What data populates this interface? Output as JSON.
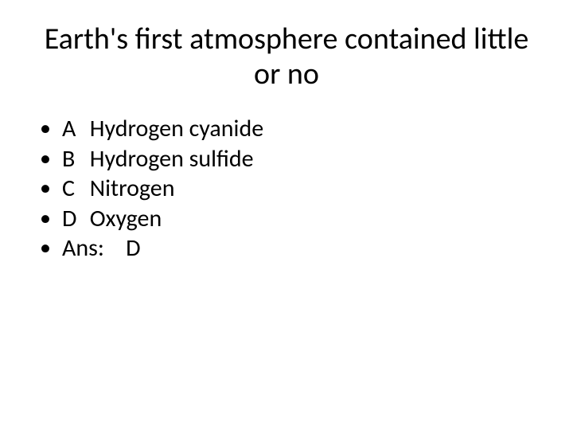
{
  "slide": {
    "title": "Earth's first atmosphere contained little or no",
    "title_fontsize": 38,
    "title_color": "#000000",
    "background_color": "#ffffff",
    "bullets": [
      {
        "letter": "A",
        "text": "Hydrogen cyanide"
      },
      {
        "letter": "B",
        "text": "Hydrogen sulfide"
      },
      {
        "letter": "C",
        "text": "Nitrogen"
      },
      {
        "letter": "D",
        "text": "Oxygen"
      }
    ],
    "answer_label": "Ans:",
    "answer_value": "D",
    "body_fontsize": 30,
    "body_color": "#000000"
  }
}
